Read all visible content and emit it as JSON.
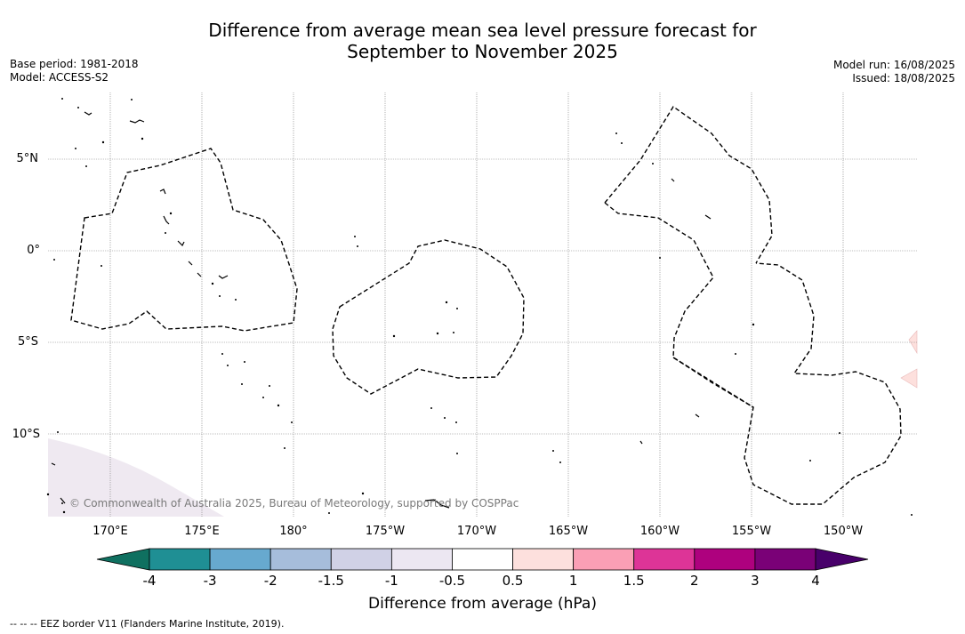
{
  "header": {
    "title_line1": "Difference from average mean sea level pressure forecast for",
    "title_line2": "September to November 2025"
  },
  "meta_left": {
    "base_period": "Base period: 1981-2018",
    "model": "Model: ACCESS-S2"
  },
  "meta_right": {
    "model_run": "Model run: 16/08/2025",
    "issued": "Issued: 18/08/2025"
  },
  "map": {
    "latitude_labels": [
      "5°N",
      "0°",
      "5°S",
      "10°S"
    ],
    "longitude_labels": [
      "170°E",
      "175°E",
      "180°",
      "175°W",
      "170°W",
      "165°W",
      "160°W",
      "155°W",
      "150°W"
    ],
    "copyright": "© Commonwealth of Australia 2025, Bureau of Meteorology, supported by COSPPac",
    "shading": [
      {
        "region": "south-west corner",
        "category": "-1 to -0.5",
        "color": "#efe9f1"
      },
      {
        "region": "east edge",
        "category": "0.5 to 1",
        "color": "#fde0dd"
      }
    ]
  },
  "colorbar": {
    "title": "Difference from average (hPa)",
    "tick_labels": [
      "-4",
      "-3",
      "-2",
      "-1.5",
      "-1",
      "-0.5",
      "0.5",
      "1",
      "1.5",
      "2",
      "3",
      "4"
    ],
    "low_extend_color": "#0f7060",
    "high_extend_color": "#48006a",
    "colors": [
      "#1f8f94",
      "#67a9cf",
      "#a6bddb",
      "#d0d1e6",
      "#ece7f2",
      "#ffffff",
      "#fde0dd",
      "#fa9fb5",
      "#dd3497",
      "#ae017e",
      "#7a0177"
    ]
  },
  "footnote": "--  --  -- EEZ border V11 (Flanders Marine Institute, 2019)."
}
